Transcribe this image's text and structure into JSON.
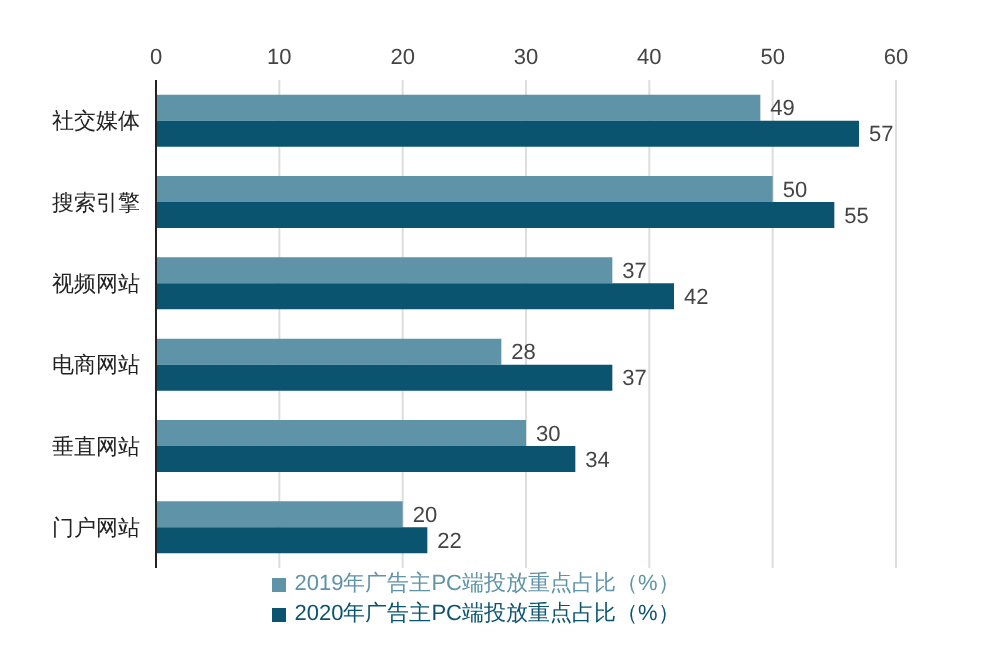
{
  "chart_data": {
    "type": "bar",
    "orientation": "horizontal",
    "categories": [
      "社交媒体",
      "搜索引擎",
      "视频网站",
      "电商网站",
      "垂直网站",
      "门户网站"
    ],
    "series": [
      {
        "name": "2019年广告主PC端投放重点占比（%）",
        "color": "#5e93a8",
        "values": [
          49,
          50,
          37,
          28,
          30,
          20
        ]
      },
      {
        "name": "2020年广告主PC端投放重点占比（%）",
        "color": "#0b5470",
        "values": [
          57,
          55,
          42,
          37,
          34,
          22
        ]
      }
    ],
    "xlim": [
      0,
      60
    ],
    "xticks": [
      0,
      10,
      20,
      30,
      40,
      50,
      60
    ],
    "grid": "x",
    "legend": "bottom",
    "data_labels": true
  }
}
